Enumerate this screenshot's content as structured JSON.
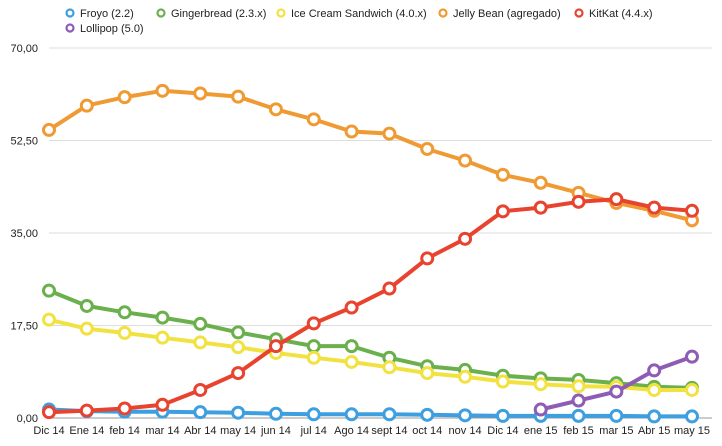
{
  "chart_data": {
    "type": "line",
    "title": "",
    "xlabel": "",
    "ylabel": "",
    "ylim": [
      0,
      70
    ],
    "grid": true,
    "legend_position": "top",
    "y_ticks": [
      "0,00",
      "17,50",
      "35,00",
      "52,50",
      "70,00"
    ],
    "y_tick_values": [
      0,
      17.5,
      35,
      52.5,
      70
    ],
    "categories": [
      "Dic 14",
      "Ene 14",
      "feb 14",
      "mar 14",
      "Abr 14",
      "may 14",
      "jun 14",
      "jul 14",
      "Ago 14",
      "sept 14",
      "oct 14",
      "nov 14",
      "Dic 14",
      "ene 15",
      "feb 15",
      "mar 15",
      "Abr 15",
      "may 15"
    ],
    "series": [
      {
        "name": "Froyo (2.2)",
        "color": "#3d9fe0",
        "values": [
          1.6,
          1.3,
          1.2,
          1.2,
          1.1,
          1.0,
          0.8,
          0.7,
          0.7,
          0.7,
          0.6,
          0.5,
          0.4,
          0.4,
          0.4,
          0.4,
          0.3,
          0.3
        ]
      },
      {
        "name": "Gingerbread (2.3.x)",
        "color": "#6ab04c",
        "values": [
          24.1,
          21.2,
          20.0,
          19.0,
          17.8,
          16.2,
          14.9,
          13.6,
          13.6,
          11.4,
          9.8,
          9.1,
          8.0,
          7.5,
          7.2,
          6.6,
          5.9,
          5.7
        ]
      },
      {
        "name": "Ice Cream Sandwich (4.0.x)",
        "color": "#f2e241",
        "values": [
          18.6,
          16.9,
          16.1,
          15.2,
          14.3,
          13.4,
          12.3,
          11.4,
          10.6,
          9.6,
          8.5,
          7.8,
          6.9,
          6.4,
          6.0,
          5.9,
          5.3,
          5.3
        ]
      },
      {
        "name": "Jelly Bean (agregado)",
        "color": "#ef9a32",
        "values": [
          54.5,
          59.1,
          60.7,
          61.9,
          61.4,
          60.8,
          58.4,
          56.5,
          54.2,
          53.8,
          50.9,
          48.7,
          46.0,
          44.5,
          42.6,
          40.7,
          39.2,
          37.4
        ]
      },
      {
        "name": "KitKat (4.4.x)",
        "color": "#e8432e",
        "values": [
          1.1,
          1.4,
          1.8,
          2.5,
          5.3,
          8.5,
          13.6,
          17.9,
          20.9,
          24.5,
          30.2,
          33.9,
          39.1,
          39.8,
          40.9,
          41.4,
          39.8,
          39.2
        ]
      },
      {
        "name": "Lollipop (5.0)",
        "color": "#8e5bb5",
        "values": [
          null,
          null,
          null,
          null,
          null,
          null,
          null,
          null,
          null,
          null,
          null,
          null,
          null,
          1.6,
          3.3,
          5.0,
          9.0,
          11.6
        ]
      }
    ]
  }
}
